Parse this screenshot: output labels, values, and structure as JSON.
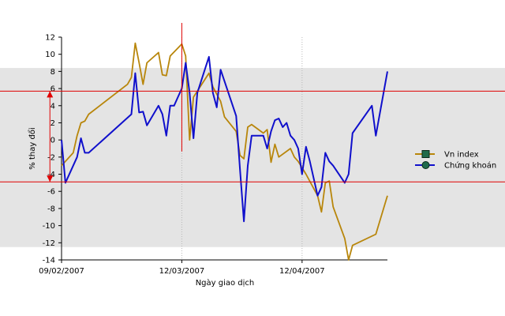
{
  "chart_data": {
    "type": "line",
    "xlabel": "Ngày giao dịch",
    "ylabel": "% thay đổi",
    "ylim": [
      -14,
      12
    ],
    "yticks": [
      12,
      10,
      8,
      6,
      4,
      2,
      0,
      -2,
      -4,
      -6,
      -8,
      -10,
      -12,
      -14
    ],
    "x_range": [
      "2007-02-09",
      "2007-05-04"
    ],
    "xtick_labels": [
      {
        "date": "2007-02-09",
        "label": "09/02/2007"
      },
      {
        "date": "2007-03-12",
        "label": "12/03/2007"
      },
      {
        "date": "2007-04-12",
        "label": "12/04/2007"
      }
    ],
    "grid": "vertical dotted at x ticks",
    "legend_position": "right",
    "background_band": [
      -12.5,
      8.4
    ],
    "annotations": {
      "horizontal_lines": [
        5.7,
        -4.9
      ],
      "vertical_line": {
        "date": "2007-03-12",
        "y_range": [
          0.5,
          12
        ]
      },
      "range_arrow": {
        "date": "2007-02-06",
        "from": 5.7,
        "to": -4.9
      }
    },
    "series": [
      {
        "name": "Vn index",
        "color": "#B8860B",
        "marker": "square",
        "points": [
          [
            "2007-02-09",
            -3.0
          ],
          [
            "2007-02-12",
            -1.5
          ],
          [
            "2007-02-13",
            0.5
          ],
          [
            "2007-02-14",
            2.0
          ],
          [
            "2007-02-15",
            2.2
          ],
          [
            "2007-02-16",
            3.0
          ],
          [
            "2007-02-26",
            6.5
          ],
          [
            "2007-02-27",
            7.3
          ],
          [
            "2007-02-28",
            11.3
          ],
          [
            "2007-03-01",
            9.0
          ],
          [
            "2007-03-02",
            6.5
          ],
          [
            "2007-03-03",
            9.0
          ],
          [
            "2007-03-06",
            10.2
          ],
          [
            "2007-03-07",
            7.6
          ],
          [
            "2007-03-08",
            7.5
          ],
          [
            "2007-03-09",
            9.8
          ],
          [
            "2007-03-12",
            11.2
          ],
          [
            "2007-03-13",
            9.8
          ],
          [
            "2007-03-14",
            0.0
          ],
          [
            "2007-03-15",
            5.0
          ],
          [
            "2007-03-19",
            7.8
          ],
          [
            "2007-03-20",
            6.2
          ],
          [
            "2007-03-22",
            4.5
          ],
          [
            "2007-03-23",
            2.7
          ],
          [
            "2007-03-26",
            1.0
          ],
          [
            "2007-03-27",
            -1.8
          ],
          [
            "2007-03-28",
            -2.2
          ],
          [
            "2007-03-29",
            1.5
          ],
          [
            "2007-03-30",
            1.8
          ],
          [
            "2007-04-02",
            0.8
          ],
          [
            "2007-04-03",
            1.2
          ],
          [
            "2007-04-04",
            -2.6
          ],
          [
            "2007-04-05",
            -0.5
          ],
          [
            "2007-04-06",
            -2.0
          ],
          [
            "2007-04-09",
            -1.0
          ],
          [
            "2007-04-10",
            -2.0
          ],
          [
            "2007-04-11",
            -2.5
          ],
          [
            "2007-04-13",
            -4.0
          ],
          [
            "2007-04-16",
            -6.5
          ],
          [
            "2007-04-17",
            -8.4
          ],
          [
            "2007-04-18",
            -5.0
          ],
          [
            "2007-04-19",
            -4.8
          ],
          [
            "2007-04-20",
            -7.8
          ],
          [
            "2007-04-23",
            -11.5
          ],
          [
            "2007-04-24",
            -14.0
          ],
          [
            "2007-04-25",
            -12.3
          ],
          [
            "2007-05-01",
            -11.0
          ],
          [
            "2007-05-04",
            -6.5
          ]
        ]
      },
      {
        "name": "Chứng khoán",
        "color": "#1010CC",
        "marker": "circle",
        "points": [
          [
            "2007-02-09",
            0.0
          ],
          [
            "2007-02-10",
            -5.0
          ],
          [
            "2007-02-13",
            -2.0
          ],
          [
            "2007-02-14",
            0.2
          ],
          [
            "2007-02-15",
            -1.5
          ],
          [
            "2007-02-16",
            -1.5
          ],
          [
            "2007-02-27",
            3.0
          ],
          [
            "2007-02-28",
            7.8
          ],
          [
            "2007-03-01",
            3.2
          ],
          [
            "2007-03-02",
            3.3
          ],
          [
            "2007-03-03",
            1.7
          ],
          [
            "2007-03-06",
            4.0
          ],
          [
            "2007-03-07",
            3.0
          ],
          [
            "2007-03-08",
            0.5
          ],
          [
            "2007-03-09",
            4.0
          ],
          [
            "2007-03-10",
            4.0
          ],
          [
            "2007-03-11",
            5.0
          ],
          [
            "2007-03-12",
            6.0
          ],
          [
            "2007-03-13",
            9.0
          ],
          [
            "2007-03-14",
            5.5
          ],
          [
            "2007-03-15",
            0.2
          ],
          [
            "2007-03-16",
            5.5
          ],
          [
            "2007-03-19",
            9.7
          ],
          [
            "2007-03-20",
            5.5
          ],
          [
            "2007-03-21",
            3.8
          ],
          [
            "2007-03-22",
            8.2
          ],
          [
            "2007-03-26",
            2.8
          ],
          [
            "2007-03-27",
            -3.5
          ],
          [
            "2007-03-28",
            -9.5
          ],
          [
            "2007-03-29",
            -3.0
          ],
          [
            "2007-03-30",
            0.5
          ],
          [
            "2007-04-02",
            0.5
          ],
          [
            "2007-04-03",
            -1.0
          ],
          [
            "2007-04-04",
            1.0
          ],
          [
            "2007-04-05",
            2.3
          ],
          [
            "2007-04-06",
            2.5
          ],
          [
            "2007-04-07",
            1.5
          ],
          [
            "2007-04-08",
            2.0
          ],
          [
            "2007-04-09",
            0.5
          ],
          [
            "2007-04-10",
            0.0
          ],
          [
            "2007-04-11",
            -1.0
          ],
          [
            "2007-04-12",
            -4.0
          ],
          [
            "2007-04-13",
            -0.8
          ],
          [
            "2007-04-14",
            -2.5
          ],
          [
            "2007-04-16",
            -6.5
          ],
          [
            "2007-04-17",
            -5.5
          ],
          [
            "2007-04-18",
            -1.5
          ],
          [
            "2007-04-19",
            -2.5
          ],
          [
            "2007-04-20",
            -3.0
          ],
          [
            "2007-04-23",
            -5.0
          ],
          [
            "2007-04-24",
            -4.0
          ],
          [
            "2007-04-25",
            0.8
          ],
          [
            "2007-04-30",
            4.0
          ],
          [
            "2007-05-01",
            0.5
          ],
          [
            "2007-05-02",
            3.0
          ],
          [
            "2007-05-04",
            8.0
          ]
        ]
      }
    ]
  }
}
